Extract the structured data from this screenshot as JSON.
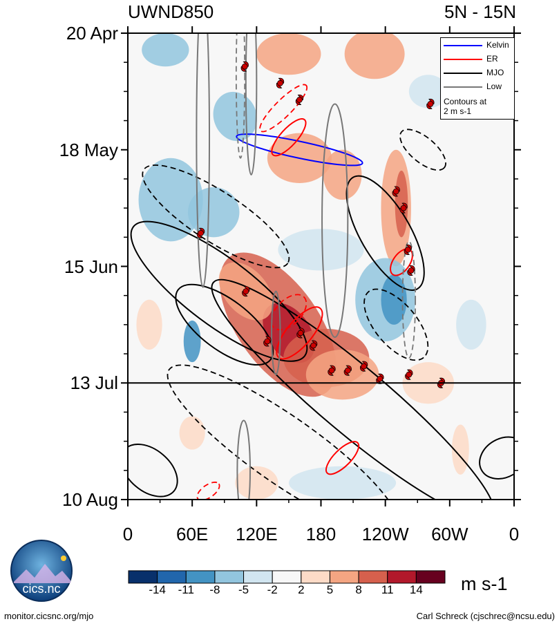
{
  "header": {
    "title_left": "UWND850",
    "title_right": "5N - 15N"
  },
  "chart_data": {
    "type": "heatmap",
    "title": "UWND850",
    "subtitle": "5N - 15N",
    "x_tick_labels": [
      "0",
      "60E",
      "120E",
      "180",
      "120W",
      "60W",
      "0"
    ],
    "x_ticks_lon": [
      0,
      60,
      120,
      180,
      240,
      300,
      360
    ],
    "y_tick_labels": [
      "20 Apr",
      "18 May",
      "15 Jun",
      "13 Jul",
      "10 Aug"
    ],
    "y_ticks_day": [
      0,
      28,
      56,
      84,
      112
    ],
    "x_range": [
      0,
      360
    ],
    "y_range_days": [
      0,
      112
    ],
    "current_date_line_day": 84,
    "colorbar": {
      "levels": [
        "-14",
        "-11",
        "-8",
        "-5",
        "-2",
        "2",
        "5",
        "8",
        "11",
        "14"
      ],
      "colors": [
        "#08306b",
        "#2166ac",
        "#4393c3",
        "#92c5de",
        "#d1e5f0",
        "#f7f7f7",
        "#fddbc7",
        "#f4a582",
        "#d6604d",
        "#b2182b",
        "#67001f"
      ],
      "units": "m s-1"
    },
    "legend": {
      "entries": [
        {
          "name": "Kelvin",
          "color": "#0000ff"
        },
        {
          "name": "ER",
          "color": "#ff0000"
        },
        {
          "name": "MJO",
          "color": "#000000"
        },
        {
          "name": "Low",
          "color": "#777777"
        }
      ],
      "note_line1": "Contours at",
      "note_line2": "2 m s-1",
      "position": "top-right"
    },
    "storm_markers": [
      {
        "lon": 109,
        "day": 8
      },
      {
        "lon": 142,
        "day": 12
      },
      {
        "lon": 160,
        "day": 16
      },
      {
        "lon": 282,
        "day": 17
      },
      {
        "lon": 68,
        "day": 48
      },
      {
        "lon": 250,
        "day": 38
      },
      {
        "lon": 257,
        "day": 42
      },
      {
        "lon": 261,
        "day": 52
      },
      {
        "lon": 264,
        "day": 57
      },
      {
        "lon": 110,
        "day": 62
      },
      {
        "lon": 161,
        "day": 72
      },
      {
        "lon": 130,
        "day": 74
      },
      {
        "lon": 173,
        "day": 75
      },
      {
        "lon": 220,
        "day": 80
      },
      {
        "lon": 205,
        "day": 81
      },
      {
        "lon": 190,
        "day": 81
      },
      {
        "lon": 235,
        "day": 83
      },
      {
        "lon": 262,
        "day": 82
      },
      {
        "lon": 292,
        "day": 84
      }
    ]
  },
  "footer": {
    "logo_text": "cics.nc",
    "left": "monitor.cicsnc.org/mjo",
    "right": "Carl Schreck (cjschrec@ncsu.edu)"
  }
}
